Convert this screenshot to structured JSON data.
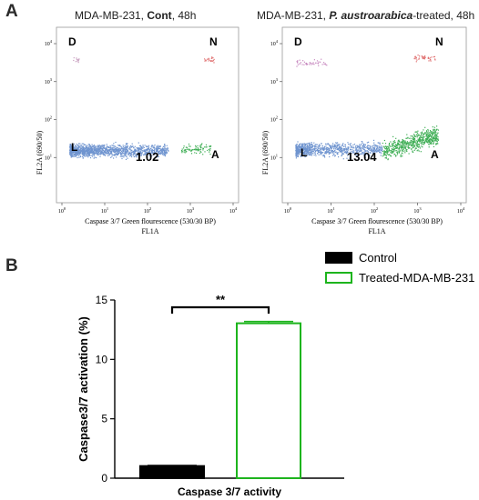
{
  "panels": {
    "a_letter": "A",
    "b_letter": "B"
  },
  "flow_left": {
    "title_prefix": "MDA-MB-231, ",
    "title_bold": "Cont",
    "title_suffix": ", 48h",
    "quadrants": {
      "D": "D",
      "N": "N",
      "L": "L",
      "A": "A"
    },
    "percentage_label": "1.02",
    "xlabel": "Caspase 3/7 Green flourescence (530/30 BP)",
    "xlabel2": "FL1A",
    "ylabel": "FL2A (690/50)"
  },
  "flow_right": {
    "title_prefix": "MDA-MB-231, ",
    "title_italic": "P. austroarabica",
    "title_suffix": "-treated, 48h",
    "quadrants": {
      "D": "D",
      "N": "N",
      "L": "L",
      "A": "A"
    },
    "percentage_label": "13.04",
    "xlabel": "Caspase 3/7 Green flourescence (530/30 BP)",
    "xlabel2": "FL1A",
    "ylabel": "FL2A (690/50)"
  },
  "chart_data": [
    {
      "type": "scatter",
      "panel": "A-left",
      "title": "MDA-MB-231, Cont, 48h",
      "xlabel": "Caspase 3/7 Green flourescence (530/30 BP) FL1A",
      "ylabel": "FL2A (690/50)",
      "xscale": "log",
      "yscale": "log",
      "xlim": [
        1,
        10000
      ],
      "ylim": [
        1,
        10000
      ],
      "x_ticks": [
        "10^0",
        "10^1",
        "10^2",
        "10^3",
        "10^4"
      ],
      "y_ticks": [
        "10^1",
        "10^2",
        "10^3",
        "10^4"
      ],
      "annotation": "1.02",
      "populations": [
        {
          "quadrant": "L",
          "color": "#6f94cf",
          "x_range": [
            1.5,
            300
          ],
          "y_range": [
            8,
            30
          ]
        },
        {
          "quadrant": "A",
          "color": "#3fae55",
          "x_range": [
            600,
            3000
          ],
          "y_range": [
            10,
            30
          ]
        },
        {
          "quadrant": "D",
          "color": "#c9a0c0",
          "x_range": [
            1.8,
            2.5
          ],
          "y_range": [
            3000,
            5000
          ]
        },
        {
          "quadrant": "N",
          "color": "#e07070",
          "x_range": [
            2000,
            3500
          ],
          "y_range": [
            3000,
            5000
          ]
        }
      ],
      "colors": {
        "live": "#6f94cf",
        "apoptotic": "#3fae55",
        "dead": "#c9a0c0",
        "necrotic": "#e07070"
      }
    },
    {
      "type": "scatter",
      "panel": "A-right",
      "title": "MDA-MB-231, P. austroarabica-treated, 48h",
      "xlabel": "Caspase 3/7 Green flourescence (530/30 BP) FL1A",
      "ylabel": "FL2A (690/50)",
      "xscale": "log",
      "yscale": "log",
      "xlim": [
        1,
        10000
      ],
      "ylim": [
        1,
        10000
      ],
      "x_ticks": [
        "10^0",
        "10^1",
        "10^2",
        "10^3",
        "10^4"
      ],
      "y_ticks": [
        "10^1",
        "10^2",
        "10^3",
        "10^4"
      ],
      "annotation": "13.04",
      "populations": [
        {
          "quadrant": "L",
          "color": "#6f94cf",
          "x_range": [
            1.5,
            150
          ],
          "y_range": [
            8,
            35
          ]
        },
        {
          "quadrant": "A",
          "color": "#3fae55",
          "x_range": [
            150,
            3000
          ],
          "y_range": [
            8,
            60
          ]
        },
        {
          "quadrant": "D",
          "color": "#c88ac0",
          "x_range": [
            1.5,
            8
          ],
          "y_range": [
            2000,
            5000
          ]
        },
        {
          "quadrant": "N",
          "color": "#e07070",
          "x_range": [
            800,
            2500
          ],
          "y_range": [
            3000,
            6000
          ]
        }
      ],
      "colors": {
        "live": "#6f94cf",
        "apoptotic": "#3fae55",
        "dead": "#c88ac0",
        "necrotic": "#e07070"
      }
    },
    {
      "type": "bar",
      "panel": "B",
      "categories": [
        "Caspase 3/7 activity"
      ],
      "xlabel": "Caspase 3/7 activity",
      "ylabel": "Caspase3/7 activation (%)",
      "ylim": [
        0,
        15
      ],
      "y_ticks": [
        0,
        5,
        10,
        15
      ],
      "series": [
        {
          "name": "Control",
          "values": [
            1.02
          ],
          "error": [
            0.05
          ],
          "fill": "#000000",
          "stroke": "#000000"
        },
        {
          "name": "Treated-MDA-MB-231",
          "values": [
            13.04
          ],
          "error": [
            0.15
          ],
          "fill": "#ffffff",
          "stroke": "#1db41d"
        }
      ],
      "significance": "**",
      "legend_position": "top-right"
    }
  ]
}
